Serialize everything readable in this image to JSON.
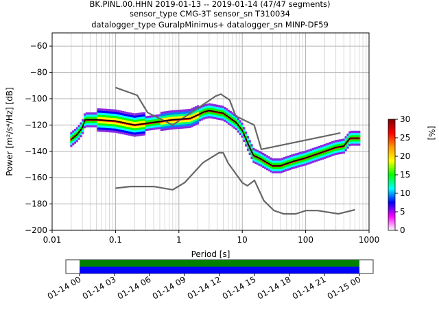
{
  "title_lines": [
    "BK.PINL.00.HHN   2019-01-13 -- 2019-01-14  (47/47 segments)",
    "sensor_type CMG-3T sensor_sn T310034",
    "datalogger_type GuralpMinimus+ datalogger_sn MINP-DF59"
  ],
  "chart_data": [
    {
      "type": "heatmap",
      "xlabel": "Period [s]",
      "ylabel": "Power [m²/s⁴/Hz] [dB]",
      "xscale": "log",
      "xlim": [
        0.01,
        1000
      ],
      "ylim": [
        -200,
        -50
      ],
      "x_ticks": [
        {
          "value": 0.01,
          "label": "0.01"
        },
        {
          "value": 0.1,
          "label": "0.1"
        },
        {
          "value": 1,
          "label": "1"
        },
        {
          "value": 10,
          "label": "10"
        },
        {
          "value": 100,
          "label": "100"
        },
        {
          "value": 1000,
          "label": "1000"
        }
      ],
      "y_ticks": [
        {
          "value": -60,
          "label": "−60"
        },
        {
          "value": -80,
          "label": "−80"
        },
        {
          "value": -100,
          "label": "−100"
        },
        {
          "value": -120,
          "label": "−120"
        },
        {
          "value": -140,
          "label": "−140"
        },
        {
          "value": -160,
          "label": "−160"
        },
        {
          "value": -180,
          "label": "−180"
        },
        {
          "value": -200,
          "label": "−200"
        }
      ],
      "grid": true,
      "noise_models": {
        "color": "#666666",
        "high": [
          [
            0.1,
            -91.5
          ],
          [
            0.22,
            -97.4
          ],
          [
            0.32,
            -110.5
          ],
          [
            0.8,
            -120
          ],
          [
            3.8,
            -98
          ],
          [
            4.6,
            -96.5
          ],
          [
            6.3,
            -101
          ],
          [
            7.9,
            -113.2
          ],
          [
            15.4,
            -120
          ],
          [
            20,
            -138.5
          ],
          [
            354,
            -126
          ],
          [
            10000,
            -80
          ]
        ],
        "low": [
          [
            0.1,
            -168
          ],
          [
            0.17,
            -166.7
          ],
          [
            0.4,
            -166.7
          ],
          [
            0.8,
            -169.2
          ],
          [
            1.24,
            -163.7
          ],
          [
            2.4,
            -148.6
          ],
          [
            4.3,
            -141.1
          ],
          [
            5,
            -141.1
          ],
          [
            6,
            -149
          ],
          [
            10,
            -163.8
          ],
          [
            12,
            -166.2
          ],
          [
            15.6,
            -162.1
          ],
          [
            21.9,
            -177.5
          ],
          [
            31.6,
            -185
          ],
          [
            45,
            -187.5
          ],
          [
            70,
            -187.5
          ],
          [
            101,
            -185
          ],
          [
            154,
            -185
          ],
          [
            328,
            -187.5
          ],
          [
            600,
            -184.4
          ],
          [
            10000,
            -151.5
          ]
        ]
      },
      "mean_curve": {
        "color": "#000000",
        "points": [
          [
            0.02,
            -131
          ],
          [
            0.025,
            -127
          ],
          [
            0.03,
            -122
          ],
          [
            0.033,
            -116
          ],
          [
            0.05,
            -116
          ],
          [
            0.1,
            -117
          ],
          [
            0.2,
            -120
          ],
          [
            0.4,
            -118
          ],
          [
            0.8,
            -116
          ],
          [
            1.5,
            -115
          ],
          [
            2.5,
            -110
          ],
          [
            3,
            -109
          ],
          [
            5,
            -111
          ],
          [
            8,
            -118
          ],
          [
            10,
            -124
          ],
          [
            12,
            -133
          ],
          [
            15,
            -143
          ],
          [
            20,
            -146
          ],
          [
            30,
            -151
          ],
          [
            40,
            -151
          ],
          [
            60,
            -148
          ],
          [
            100,
            -145
          ],
          [
            200,
            -140
          ],
          [
            300,
            -137
          ],
          [
            400,
            -136
          ],
          [
            500,
            -130
          ],
          [
            700,
            -130
          ]
        ]
      },
      "colorbar": {
        "label": "[%]",
        "range": [
          0,
          30
        ],
        "ticks": [
          0,
          5,
          10,
          15,
          20,
          25,
          30
        ],
        "colors": [
          "#ffffff",
          "#ff00ff",
          "#0000ff",
          "#00ffff",
          "#00ff00",
          "#ffff00",
          "#ff9900",
          "#ff0000",
          "#800000"
        ]
      }
    },
    {
      "type": "timeline",
      "ticks": [
        "01-14 00",
        "01-14 03",
        "01-14 06",
        "01-14 09",
        "01-14 12",
        "01-14 15",
        "01-14 18",
        "01-14 21",
        "01-15 00"
      ],
      "bands": [
        {
          "color": "#008000",
          "range": [
            0,
            1
          ]
        },
        {
          "color": "#0000ff",
          "range": [
            0,
            1
          ]
        }
      ]
    }
  ]
}
